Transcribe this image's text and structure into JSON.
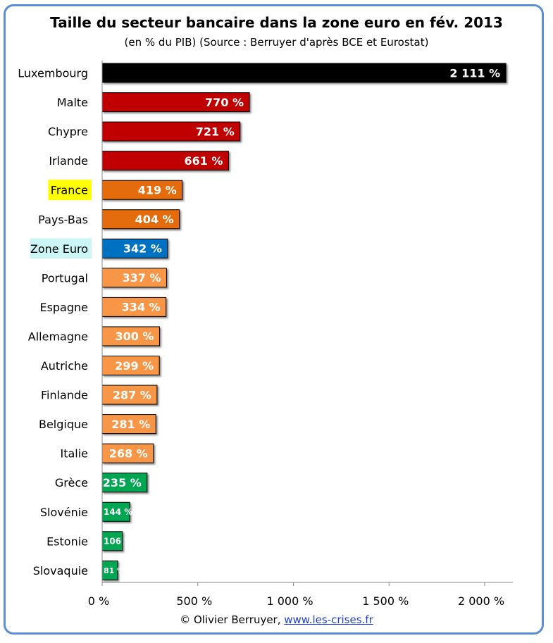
{
  "chart_data": {
    "type": "bar",
    "orientation": "horizontal",
    "title": "Taille du secteur bancaire dans la zone euro en fév. 2013",
    "subtitle": "(en % du PIB) (Source : Berruyer d'après BCE et Eurostat)",
    "categories": [
      "Luxembourg",
      "Malte",
      "Chypre",
      "Irlande",
      "France",
      "Pays-Bas",
      "Zone Euro",
      "Portugal",
      "Espagne",
      "Allemagne",
      "Autriche",
      "Finlande",
      "Belgique",
      "Italie",
      "Grèce",
      "Slovénie",
      "Estonie",
      "Slovaquie"
    ],
    "values": [
      2111,
      770,
      721,
      661,
      419,
      404,
      342,
      337,
      334,
      300,
      299,
      287,
      281,
      268,
      235,
      144,
      106,
      81
    ],
    "value_labels": [
      "2 111 %",
      "770 %",
      "721 %",
      "661 %",
      "419 %",
      "404 %",
      "342 %",
      "337 %",
      "334 %",
      "300 %",
      "299 %",
      "287 %",
      "281 %",
      "268 %",
      "235 %",
      "144 %",
      "106 %",
      "81 %"
    ],
    "bar_colors": [
      "#000000",
      "#c00000",
      "#c00000",
      "#c00000",
      "#e46c0a",
      "#e46c0a",
      "#0070c0",
      "#f79646",
      "#f79646",
      "#f79646",
      "#f79646",
      "#f79646",
      "#f79646",
      "#f79646",
      "#00a651",
      "#00a651",
      "#00a651",
      "#00a651"
    ],
    "highlight_labels": {
      "France": "#ffff00",
      "Zone Euro": "#ccf6f6"
    },
    "xlim": [
      0,
      2150
    ],
    "xticks": [
      0,
      500,
      1000,
      1500,
      2000
    ],
    "xtick_labels": [
      "0 %",
      "500 %",
      "1 000 %",
      "1 500 %",
      "2 000 %"
    ],
    "grid": false
  },
  "footer": {
    "credit": "© Olivier Berruyer, ",
    "link": "www.les-crises.fr"
  }
}
